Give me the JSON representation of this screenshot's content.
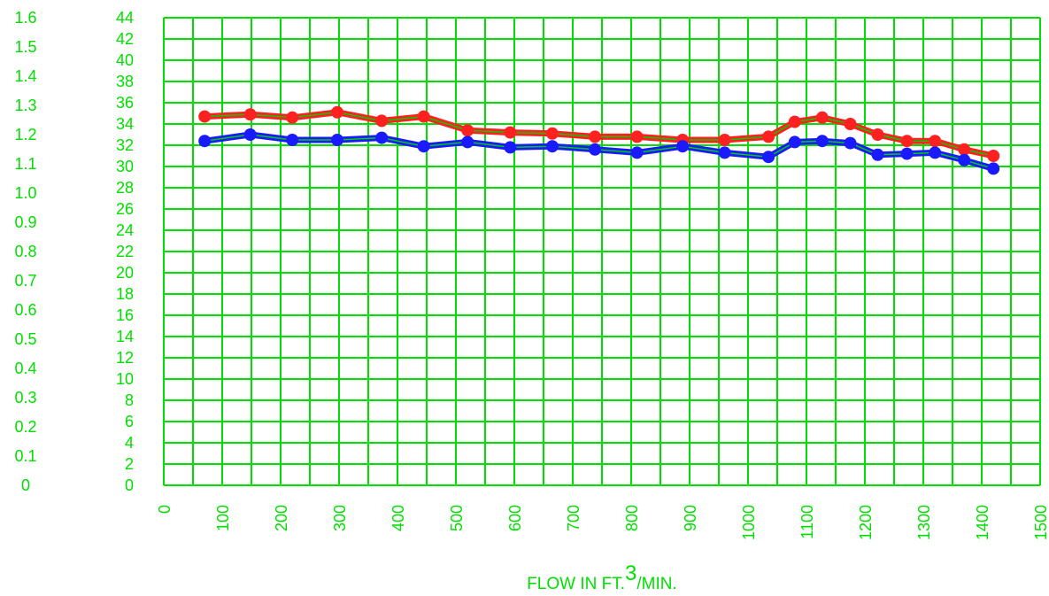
{
  "chart_data": {
    "type": "line",
    "xlabel": "FLOW IN FT.",
    "xlabel_sup": "3",
    "xlabel_suffix": "/MIN.",
    "xlim": [
      0,
      1500
    ],
    "x_ticks": [
      "0",
      "100",
      "200",
      "300",
      "400",
      "500",
      "600",
      "700",
      "800",
      "900",
      "1000",
      "1100",
      "1200",
      "1300",
      "1400",
      "1500"
    ],
    "ylim": [
      0,
      44
    ],
    "y_ticks": [
      "0",
      "2",
      "4",
      "6",
      "8",
      "10",
      "12",
      "14",
      "16",
      "18",
      "20",
      "22",
      "24",
      "26",
      "28",
      "30",
      "32",
      "34",
      "36",
      "38",
      "40",
      "42",
      "44"
    ],
    "y2lim": [
      0,
      1.6
    ],
    "y2_ticks": [
      "0",
      "0.1",
      "0.2",
      "0.3",
      "0.4",
      "0.5",
      "0.6",
      "0.7",
      "0.8",
      "0.9",
      "1.0",
      "1.1",
      "1.2",
      "1.3",
      "1.4",
      "1.5",
      "1.6"
    ],
    "grid": true,
    "x": [
      70,
      148,
      220,
      297,
      373,
      445,
      520,
      593,
      665,
      738,
      810,
      888,
      960,
      1035,
      1080,
      1127,
      1175,
      1222,
      1272,
      1320,
      1370,
      1420
    ],
    "series": [
      {
        "color": "#ff2020",
        "values": [
          34.7,
          34.9,
          34.6,
          35.1,
          34.3,
          34.7,
          33.4,
          33.2,
          33.1,
          32.8,
          32.8,
          32.5,
          32.5,
          32.8,
          34.2,
          34.6,
          34.0,
          33.0,
          32.4,
          32.4,
          31.6,
          31.0
        ]
      },
      {
        "color": "#1a1aff",
        "values": [
          32.4,
          33.0,
          32.5,
          32.5,
          32.7,
          31.9,
          32.3,
          31.8,
          31.9,
          31.6,
          31.3,
          31.9,
          31.3,
          30.9,
          32.3,
          32.4,
          32.2,
          31.1,
          31.2,
          31.3,
          30.6,
          29.8
        ]
      }
    ],
    "grid_color": "#00e000",
    "axis_text_color": "#00e000",
    "line_core_color": "#00cc00"
  }
}
